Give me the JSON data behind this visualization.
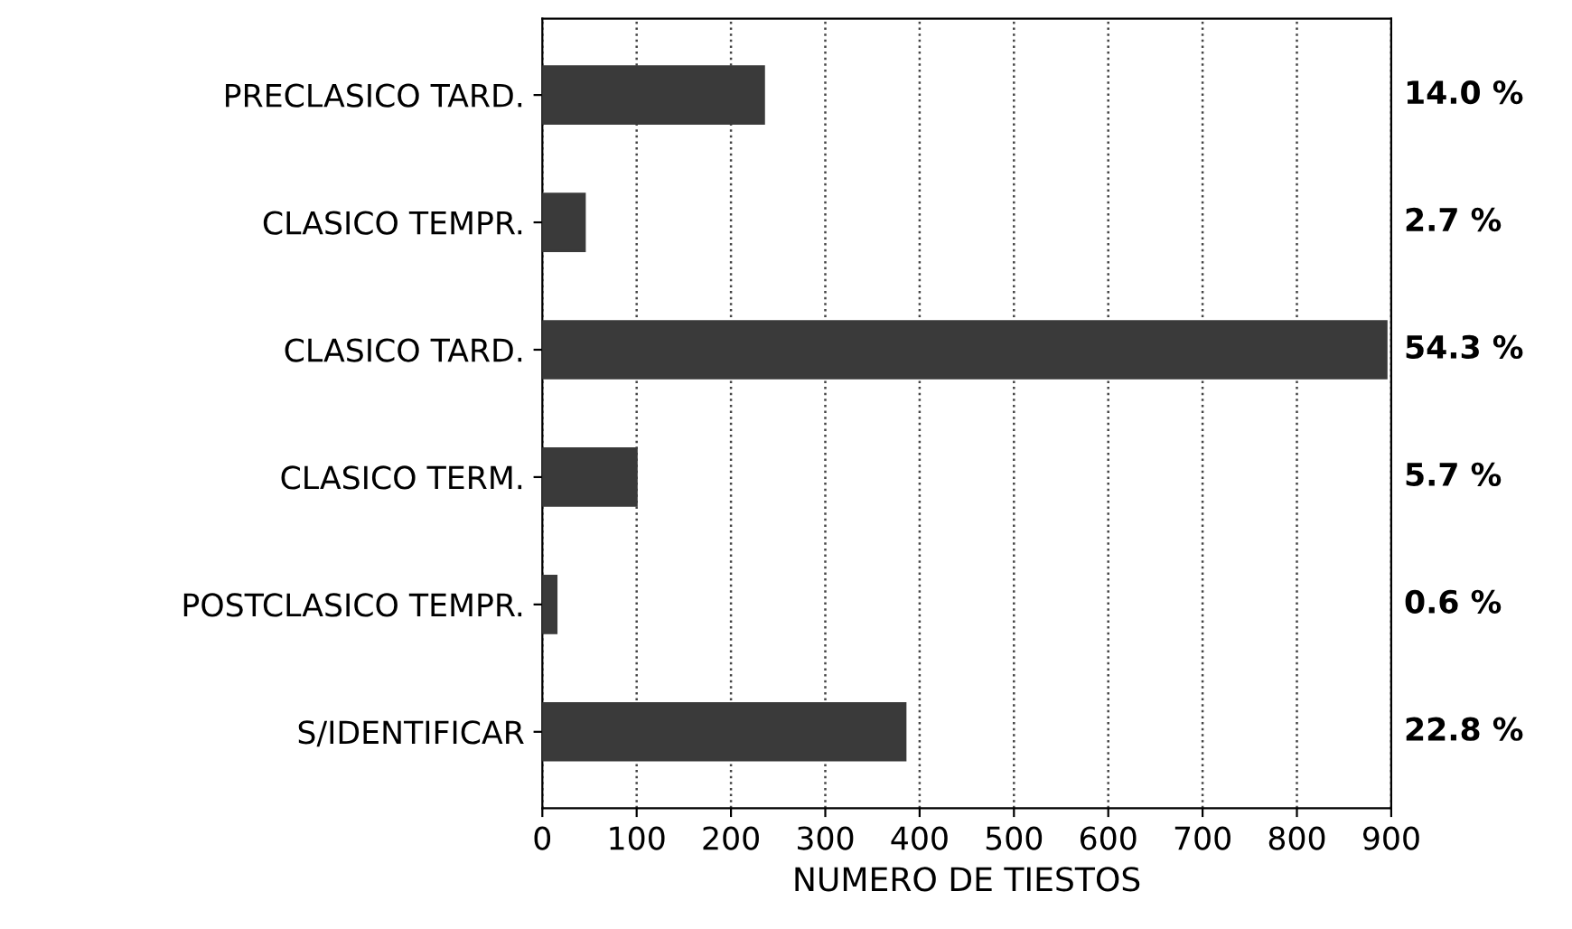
{
  "chart_data": {
    "type": "bar",
    "orientation": "horizontal",
    "xlabel": "NUMERO DE TIESTOS",
    "categories": [
      "PRECLASICO TARD.",
      "CLASICO TEMPR.",
      "CLASICO TARD.",
      "CLASICO TERM.",
      "POSTCLASICO TEMPR.",
      "S/IDENTIFICAR"
    ],
    "values": [
      235,
      45,
      895,
      100,
      15,
      385
    ],
    "annotations": [
      "14.0 %",
      "2.7 %",
      "54.3 %",
      "5.7 %",
      "0.6 %",
      "22.8 %"
    ],
    "color": "#3a3a3a",
    "xlim": [
      0,
      900
    ],
    "xticks": [
      0,
      100,
      200,
      300,
      400,
      500,
      600,
      700,
      800,
      900
    ],
    "grid": "x"
  }
}
